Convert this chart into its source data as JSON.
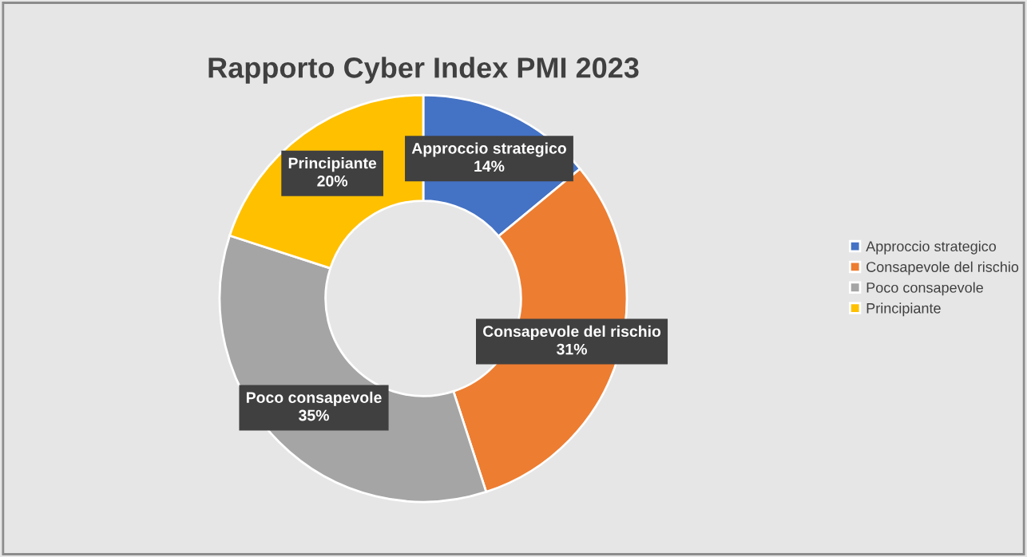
{
  "chart_data": {
    "type": "donut",
    "title": "Rapporto Cyber Index PMI 2023",
    "categories": [
      "Approccio strategico",
      "Consapevole del rischio",
      "Poco consapevole",
      "Principiante"
    ],
    "values": [
      14,
      31,
      35,
      20
    ],
    "colors": [
      "#4472c4",
      "#ed7d31",
      "#a5a5a5",
      "#ffc000"
    ],
    "value_labels": [
      "14%",
      "31%",
      "35%",
      "20%"
    ],
    "legend": "right"
  }
}
